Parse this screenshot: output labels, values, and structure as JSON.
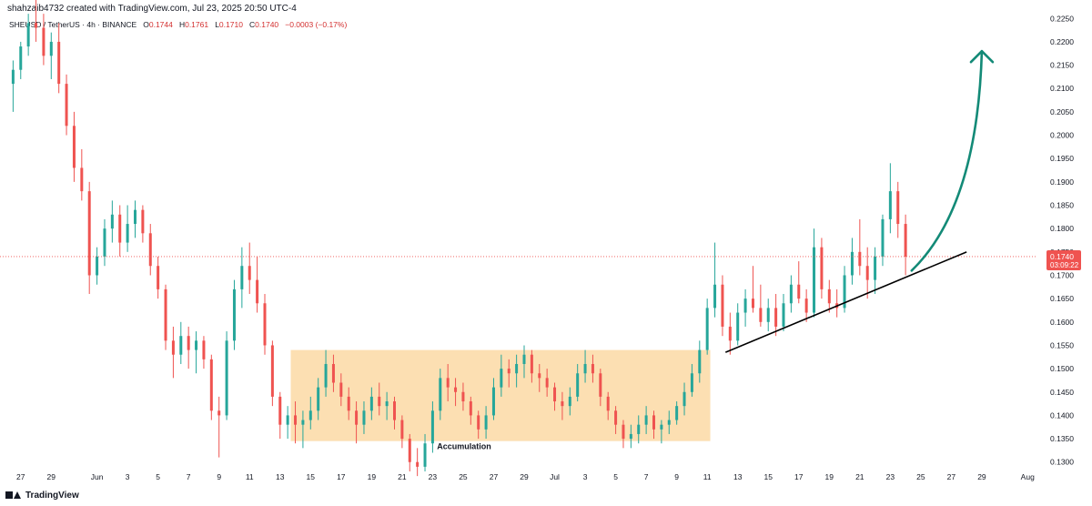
{
  "header": {
    "attribution": "shahzaib4732 created with TradingView.com, Jul 23, 2025 20:50 UTC-4",
    "symbol": "SHEUSD / TetherUS · 4h · BINANCE",
    "o_label": "O",
    "o_value": "0.1744",
    "h_label": "H",
    "h_value": "0.1761",
    "l_label": "L",
    "l_value": "0.1710",
    "c_label": "C",
    "c_value": "0.1740",
    "change": "−0.0003 (−0.17%)"
  },
  "footer": {
    "brand": "TradingView"
  },
  "colors": {
    "up": "#26a69a",
    "down": "#ef5350",
    "zone": "#fcd9a4",
    "arrow": "#138a77",
    "trendline": "#000000"
  },
  "chart_data": {
    "type": "candlestick",
    "title": "",
    "xlabel": "",
    "ylabel": "",
    "ylim": [
      0.128,
      0.227
    ],
    "y_ticks": [
      "0.2250",
      "0.2200",
      "0.2150",
      "0.2100",
      "0.2050",
      "0.2000",
      "0.1950",
      "0.1900",
      "0.1850",
      "0.1800",
      "0.1750",
      "0.1700",
      "0.1650",
      "0.1600",
      "0.1550",
      "0.1500",
      "0.1450",
      "0.1400",
      "0.1350",
      "0.1300"
    ],
    "x_ticks": [
      {
        "label": "27",
        "day": -5
      },
      {
        "label": "29",
        "day": -3
      },
      {
        "label": "Jun",
        "day": 0
      },
      {
        "label": "3",
        "day": 2
      },
      {
        "label": "5",
        "day": 4
      },
      {
        "label": "7",
        "day": 6
      },
      {
        "label": "9",
        "day": 8
      },
      {
        "label": "11",
        "day": 10
      },
      {
        "label": "13",
        "day": 12
      },
      {
        "label": "15",
        "day": 14
      },
      {
        "label": "17",
        "day": 16
      },
      {
        "label": "19",
        "day": 18
      },
      {
        "label": "21",
        "day": 20
      },
      {
        "label": "23",
        "day": 22
      },
      {
        "label": "25",
        "day": 24
      },
      {
        "label": "27",
        "day": 26
      },
      {
        "label": "29",
        "day": 28
      },
      {
        "label": "Jul",
        "day": 30
      },
      {
        "label": "3",
        "day": 32
      },
      {
        "label": "5",
        "day": 34
      },
      {
        "label": "7",
        "day": 36
      },
      {
        "label": "9",
        "day": 38
      },
      {
        "label": "11",
        "day": 40
      },
      {
        "label": "13",
        "day": 42
      },
      {
        "label": "15",
        "day": 44
      },
      {
        "label": "17",
        "day": 46
      },
      {
        "label": "19",
        "day": 48
      },
      {
        "label": "21",
        "day": 50
      },
      {
        "label": "23",
        "day": 52
      },
      {
        "label": "25",
        "day": 54
      },
      {
        "label": "27",
        "day": 56
      },
      {
        "label": "29",
        "day": 58
      },
      {
        "label": "Aug",
        "day": 61
      }
    ],
    "last_price": {
      "value": 0.174,
      "label": "0.1740",
      "countdown": "03:09:22"
    },
    "accumulation_zone": {
      "x_start_day": 12.7,
      "x_end_day": 40.2,
      "y_low": 0.1345,
      "y_high": 0.154,
      "label": "Accumulation"
    },
    "trendline": {
      "x1_day": 41.2,
      "y1": 0.1535,
      "x2_day": 57.0,
      "y2": 0.175
    },
    "projection_arrow": {
      "x_start_day": 53.4,
      "y_start": 0.171,
      "x_end_day": 58.0,
      "y_end": 0.218
    },
    "series": [
      {
        "day": -5.5,
        "o": 0.211,
        "h": 0.216,
        "l": 0.205,
        "c": 0.214
      },
      {
        "day": -5.0,
        "o": 0.214,
        "h": 0.22,
        "l": 0.212,
        "c": 0.219
      },
      {
        "day": -4.5,
        "o": 0.219,
        "h": 0.226,
        "l": 0.217,
        "c": 0.224
      },
      {
        "day": -4.0,
        "o": 0.224,
        "h": 0.229,
        "l": 0.22,
        "c": 0.223
      },
      {
        "day": -3.5,
        "o": 0.223,
        "h": 0.226,
        "l": 0.215,
        "c": 0.217
      },
      {
        "day": -3.0,
        "o": 0.217,
        "h": 0.222,
        "l": 0.212,
        "c": 0.22
      },
      {
        "day": -2.5,
        "o": 0.22,
        "h": 0.224,
        "l": 0.209,
        "c": 0.211
      },
      {
        "day": -2.0,
        "o": 0.211,
        "h": 0.213,
        "l": 0.2,
        "c": 0.202
      },
      {
        "day": -1.5,
        "o": 0.202,
        "h": 0.205,
        "l": 0.19,
        "c": 0.193
      },
      {
        "day": -1.0,
        "o": 0.193,
        "h": 0.197,
        "l": 0.186,
        "c": 0.188
      },
      {
        "day": -0.5,
        "o": 0.188,
        "h": 0.19,
        "l": 0.166,
        "c": 0.17
      },
      {
        "day": 0.0,
        "o": 0.17,
        "h": 0.176,
        "l": 0.168,
        "c": 0.174
      },
      {
        "day": 0.5,
        "o": 0.174,
        "h": 0.182,
        "l": 0.172,
        "c": 0.18
      },
      {
        "day": 1.0,
        "o": 0.18,
        "h": 0.186,
        "l": 0.177,
        "c": 0.183
      },
      {
        "day": 1.5,
        "o": 0.183,
        "h": 0.185,
        "l": 0.174,
        "c": 0.177
      },
      {
        "day": 2.0,
        "o": 0.177,
        "h": 0.185,
        "l": 0.175,
        "c": 0.181
      },
      {
        "day": 2.5,
        "o": 0.181,
        "h": 0.186,
        "l": 0.178,
        "c": 0.184
      },
      {
        "day": 3.0,
        "o": 0.184,
        "h": 0.185,
        "l": 0.177,
        "c": 0.179
      },
      {
        "day": 3.5,
        "o": 0.179,
        "h": 0.181,
        "l": 0.17,
        "c": 0.172
      },
      {
        "day": 4.0,
        "o": 0.172,
        "h": 0.174,
        "l": 0.165,
        "c": 0.167
      },
      {
        "day": 4.5,
        "o": 0.167,
        "h": 0.168,
        "l": 0.154,
        "c": 0.156
      },
      {
        "day": 5.0,
        "o": 0.156,
        "h": 0.159,
        "l": 0.148,
        "c": 0.153
      },
      {
        "day": 5.5,
        "o": 0.153,
        "h": 0.16,
        "l": 0.151,
        "c": 0.157
      },
      {
        "day": 6.0,
        "o": 0.157,
        "h": 0.159,
        "l": 0.15,
        "c": 0.154
      },
      {
        "day": 6.5,
        "o": 0.154,
        "h": 0.158,
        "l": 0.149,
        "c": 0.156
      },
      {
        "day": 7.0,
        "o": 0.156,
        "h": 0.157,
        "l": 0.15,
        "c": 0.152
      },
      {
        "day": 7.5,
        "o": 0.152,
        "h": 0.153,
        "l": 0.139,
        "c": 0.141
      },
      {
        "day": 8.0,
        "o": 0.141,
        "h": 0.144,
        "l": 0.131,
        "c": 0.14
      },
      {
        "day": 8.5,
        "o": 0.14,
        "h": 0.158,
        "l": 0.139,
        "c": 0.156
      },
      {
        "day": 9.0,
        "o": 0.156,
        "h": 0.169,
        "l": 0.154,
        "c": 0.167
      },
      {
        "day": 9.5,
        "o": 0.167,
        "h": 0.176,
        "l": 0.163,
        "c": 0.172
      },
      {
        "day": 10.0,
        "o": 0.172,
        "h": 0.177,
        "l": 0.166,
        "c": 0.169
      },
      {
        "day": 10.5,
        "o": 0.169,
        "h": 0.174,
        "l": 0.162,
        "c": 0.164
      },
      {
        "day": 11.0,
        "o": 0.164,
        "h": 0.166,
        "l": 0.153,
        "c": 0.155
      },
      {
        "day": 11.5,
        "o": 0.155,
        "h": 0.156,
        "l": 0.142,
        "c": 0.144
      },
      {
        "day": 12.0,
        "o": 0.144,
        "h": 0.145,
        "l": 0.135,
        "c": 0.138
      },
      {
        "day": 12.5,
        "o": 0.138,
        "h": 0.142,
        "l": 0.135,
        "c": 0.14
      },
      {
        "day": 13.0,
        "o": 0.14,
        "h": 0.143,
        "l": 0.134,
        "c": 0.138
      },
      {
        "day": 13.5,
        "o": 0.138,
        "h": 0.141,
        "l": 0.133,
        "c": 0.139
      },
      {
        "day": 14.0,
        "o": 0.139,
        "h": 0.144,
        "l": 0.137,
        "c": 0.141
      },
      {
        "day": 14.5,
        "o": 0.141,
        "h": 0.148,
        "l": 0.139,
        "c": 0.146
      },
      {
        "day": 15.0,
        "o": 0.146,
        "h": 0.154,
        "l": 0.144,
        "c": 0.151
      },
      {
        "day": 15.5,
        "o": 0.151,
        "h": 0.153,
        "l": 0.145,
        "c": 0.147
      },
      {
        "day": 16.0,
        "o": 0.147,
        "h": 0.149,
        "l": 0.142,
        "c": 0.144
      },
      {
        "day": 16.5,
        "o": 0.144,
        "h": 0.146,
        "l": 0.139,
        "c": 0.141
      },
      {
        "day": 17.0,
        "o": 0.141,
        "h": 0.143,
        "l": 0.134,
        "c": 0.138
      },
      {
        "day": 17.5,
        "o": 0.138,
        "h": 0.143,
        "l": 0.136,
        "c": 0.141
      },
      {
        "day": 18.0,
        "o": 0.141,
        "h": 0.146,
        "l": 0.139,
        "c": 0.144
      },
      {
        "day": 18.5,
        "o": 0.144,
        "h": 0.147,
        "l": 0.14,
        "c": 0.142
      },
      {
        "day": 19.0,
        "o": 0.142,
        "h": 0.145,
        "l": 0.139,
        "c": 0.143
      },
      {
        "day": 19.5,
        "o": 0.143,
        "h": 0.144,
        "l": 0.137,
        "c": 0.139
      },
      {
        "day": 20.0,
        "o": 0.139,
        "h": 0.14,
        "l": 0.133,
        "c": 0.135
      },
      {
        "day": 20.5,
        "o": 0.135,
        "h": 0.136,
        "l": 0.128,
        "c": 0.13
      },
      {
        "day": 21.0,
        "o": 0.13,
        "h": 0.133,
        "l": 0.127,
        "c": 0.129
      },
      {
        "day": 21.5,
        "o": 0.129,
        "h": 0.136,
        "l": 0.128,
        "c": 0.134
      },
      {
        "day": 22.0,
        "o": 0.134,
        "h": 0.143,
        "l": 0.132,
        "c": 0.141
      },
      {
        "day": 22.5,
        "o": 0.141,
        "h": 0.15,
        "l": 0.139,
        "c": 0.148
      },
      {
        "day": 23.0,
        "o": 0.148,
        "h": 0.151,
        "l": 0.143,
        "c": 0.146
      },
      {
        "day": 23.5,
        "o": 0.146,
        "h": 0.148,
        "l": 0.142,
        "c": 0.145
      },
      {
        "day": 24.0,
        "o": 0.145,
        "h": 0.147,
        "l": 0.141,
        "c": 0.143
      },
      {
        "day": 24.5,
        "o": 0.143,
        "h": 0.144,
        "l": 0.138,
        "c": 0.14
      },
      {
        "day": 25.0,
        "o": 0.14,
        "h": 0.141,
        "l": 0.135,
        "c": 0.137
      },
      {
        "day": 25.5,
        "o": 0.137,
        "h": 0.142,
        "l": 0.135,
        "c": 0.14
      },
      {
        "day": 26.0,
        "o": 0.14,
        "h": 0.148,
        "l": 0.139,
        "c": 0.146
      },
      {
        "day": 26.5,
        "o": 0.146,
        "h": 0.153,
        "l": 0.144,
        "c": 0.15
      },
      {
        "day": 27.0,
        "o": 0.15,
        "h": 0.152,
        "l": 0.146,
        "c": 0.149
      },
      {
        "day": 27.5,
        "o": 0.149,
        "h": 0.153,
        "l": 0.146,
        "c": 0.151
      },
      {
        "day": 28.0,
        "o": 0.151,
        "h": 0.155,
        "l": 0.148,
        "c": 0.153
      },
      {
        "day": 28.5,
        "o": 0.153,
        "h": 0.154,
        "l": 0.147,
        "c": 0.149
      },
      {
        "day": 29.0,
        "o": 0.149,
        "h": 0.151,
        "l": 0.145,
        "c": 0.148
      },
      {
        "day": 29.5,
        "o": 0.148,
        "h": 0.15,
        "l": 0.144,
        "c": 0.146
      },
      {
        "day": 30.0,
        "o": 0.146,
        "h": 0.147,
        "l": 0.141,
        "c": 0.143
      },
      {
        "day": 30.5,
        "o": 0.143,
        "h": 0.145,
        "l": 0.139,
        "c": 0.142
      },
      {
        "day": 31.0,
        "o": 0.142,
        "h": 0.146,
        "l": 0.14,
        "c": 0.144
      },
      {
        "day": 31.5,
        "o": 0.144,
        "h": 0.151,
        "l": 0.143,
        "c": 0.149
      },
      {
        "day": 32.0,
        "o": 0.149,
        "h": 0.154,
        "l": 0.147,
        "c": 0.151
      },
      {
        "day": 32.5,
        "o": 0.151,
        "h": 0.153,
        "l": 0.147,
        "c": 0.149
      },
      {
        "day": 33.0,
        "o": 0.149,
        "h": 0.15,
        "l": 0.142,
        "c": 0.144
      },
      {
        "day": 33.5,
        "o": 0.144,
        "h": 0.145,
        "l": 0.139,
        "c": 0.141
      },
      {
        "day": 34.0,
        "o": 0.141,
        "h": 0.142,
        "l": 0.136,
        "c": 0.138
      },
      {
        "day": 34.5,
        "o": 0.138,
        "h": 0.139,
        "l": 0.133,
        "c": 0.135
      },
      {
        "day": 35.0,
        "o": 0.135,
        "h": 0.138,
        "l": 0.133,
        "c": 0.136
      },
      {
        "day": 35.5,
        "o": 0.136,
        "h": 0.14,
        "l": 0.134,
        "c": 0.138
      },
      {
        "day": 36.0,
        "o": 0.138,
        "h": 0.142,
        "l": 0.136,
        "c": 0.14
      },
      {
        "day": 36.5,
        "o": 0.14,
        "h": 0.141,
        "l": 0.135,
        "c": 0.137
      },
      {
        "day": 37.0,
        "o": 0.137,
        "h": 0.139,
        "l": 0.134,
        "c": 0.138
      },
      {
        "day": 37.5,
        "o": 0.138,
        "h": 0.141,
        "l": 0.136,
        "c": 0.139
      },
      {
        "day": 38.0,
        "o": 0.139,
        "h": 0.143,
        "l": 0.138,
        "c": 0.142
      },
      {
        "day": 38.5,
        "o": 0.142,
        "h": 0.147,
        "l": 0.14,
        "c": 0.145
      },
      {
        "day": 39.0,
        "o": 0.145,
        "h": 0.151,
        "l": 0.144,
        "c": 0.149
      },
      {
        "day": 39.5,
        "o": 0.149,
        "h": 0.156,
        "l": 0.147,
        "c": 0.154
      },
      {
        "day": 40.0,
        "o": 0.154,
        "h": 0.165,
        "l": 0.153,
        "c": 0.163
      },
      {
        "day": 40.5,
        "o": 0.163,
        "h": 0.177,
        "l": 0.161,
        "c": 0.168
      },
      {
        "day": 41.0,
        "o": 0.168,
        "h": 0.17,
        "l": 0.157,
        "c": 0.159
      },
      {
        "day": 41.5,
        "o": 0.159,
        "h": 0.162,
        "l": 0.153,
        "c": 0.156
      },
      {
        "day": 42.0,
        "o": 0.156,
        "h": 0.164,
        "l": 0.155,
        "c": 0.162
      },
      {
        "day": 42.5,
        "o": 0.162,
        "h": 0.167,
        "l": 0.159,
        "c": 0.165
      },
      {
        "day": 43.0,
        "o": 0.165,
        "h": 0.172,
        "l": 0.162,
        "c": 0.163
      },
      {
        "day": 43.5,
        "o": 0.163,
        "h": 0.168,
        "l": 0.159,
        "c": 0.16
      },
      {
        "day": 44.0,
        "o": 0.16,
        "h": 0.165,
        "l": 0.158,
        "c": 0.163
      },
      {
        "day": 44.5,
        "o": 0.163,
        "h": 0.166,
        "l": 0.157,
        "c": 0.159
      },
      {
        "day": 45.0,
        "o": 0.159,
        "h": 0.166,
        "l": 0.158,
        "c": 0.164
      },
      {
        "day": 45.5,
        "o": 0.164,
        "h": 0.17,
        "l": 0.162,
        "c": 0.168
      },
      {
        "day": 46.0,
        "o": 0.168,
        "h": 0.173,
        "l": 0.164,
        "c": 0.165
      },
      {
        "day": 46.5,
        "o": 0.165,
        "h": 0.167,
        "l": 0.16,
        "c": 0.162
      },
      {
        "day": 47.0,
        "o": 0.162,
        "h": 0.18,
        "l": 0.161,
        "c": 0.176
      },
      {
        "day": 47.5,
        "o": 0.176,
        "h": 0.178,
        "l": 0.165,
        "c": 0.167
      },
      {
        "day": 48.0,
        "o": 0.167,
        "h": 0.169,
        "l": 0.162,
        "c": 0.164
      },
      {
        "day": 48.5,
        "o": 0.164,
        "h": 0.167,
        "l": 0.161,
        "c": 0.163
      },
      {
        "day": 49.0,
        "o": 0.163,
        "h": 0.172,
        "l": 0.162,
        "c": 0.17
      },
      {
        "day": 49.5,
        "o": 0.17,
        "h": 0.178,
        "l": 0.168,
        "c": 0.175
      },
      {
        "day": 50.0,
        "o": 0.175,
        "h": 0.182,
        "l": 0.17,
        "c": 0.172
      },
      {
        "day": 50.5,
        "o": 0.172,
        "h": 0.176,
        "l": 0.165,
        "c": 0.169
      },
      {
        "day": 51.0,
        "o": 0.169,
        "h": 0.176,
        "l": 0.166,
        "c": 0.174
      },
      {
        "day": 51.5,
        "o": 0.174,
        "h": 0.183,
        "l": 0.172,
        "c": 0.182
      },
      {
        "day": 52.0,
        "o": 0.182,
        "h": 0.194,
        "l": 0.179,
        "c": 0.188
      },
      {
        "day": 52.5,
        "o": 0.188,
        "h": 0.19,
        "l": 0.178,
        "c": 0.181
      },
      {
        "day": 53.0,
        "o": 0.181,
        "h": 0.183,
        "l": 0.17,
        "c": 0.174
      }
    ]
  }
}
